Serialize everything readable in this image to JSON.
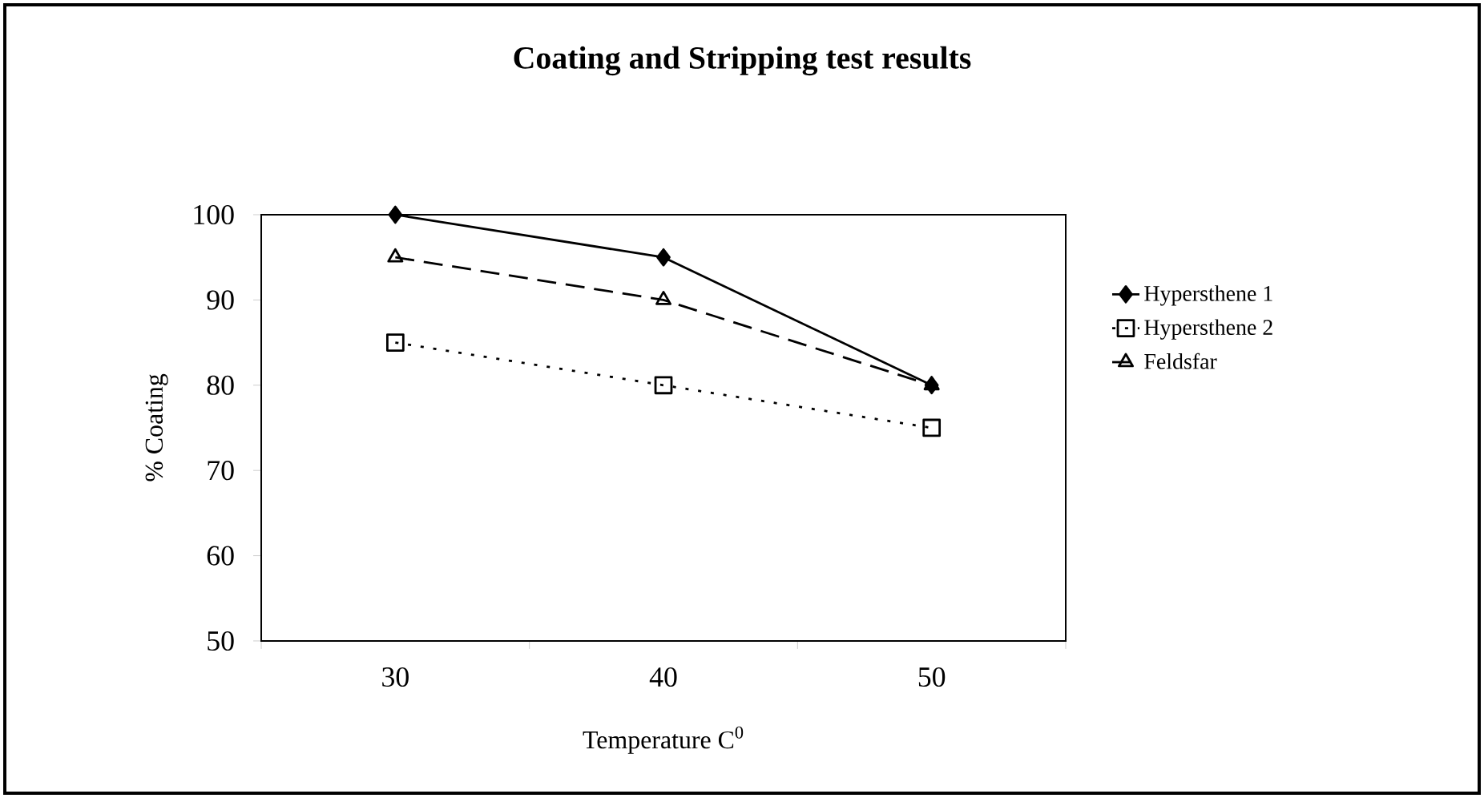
{
  "chart_data": {
    "type": "line",
    "title": "Coating and Stripping test results",
    "xlabel": "Temperature C$^{0}$",
    "ylabel": "% Coating",
    "categories": [
      "30",
      "40",
      "50"
    ],
    "series": [
      {
        "name": "Hypersthene 1",
        "color": "#000000",
        "values": [
          100,
          95,
          80
        ],
        "marker": "diamond",
        "line_style": "solid"
      },
      {
        "name": "Hypersthene 2",
        "color": "#000000",
        "values": [
          85,
          80,
          75
        ],
        "marker": "square",
        "line_style": "dotted"
      },
      {
        "name": "Feldsfar",
        "color": "#000000",
        "values": [
          95,
          90,
          80
        ],
        "marker": "triangle",
        "line_style": "dashed"
      }
    ],
    "ylim": [
      50,
      100
    ],
    "yticks": [
      50,
      60,
      70,
      80,
      90,
      100
    ],
    "grid": false,
    "legend": "right"
  }
}
